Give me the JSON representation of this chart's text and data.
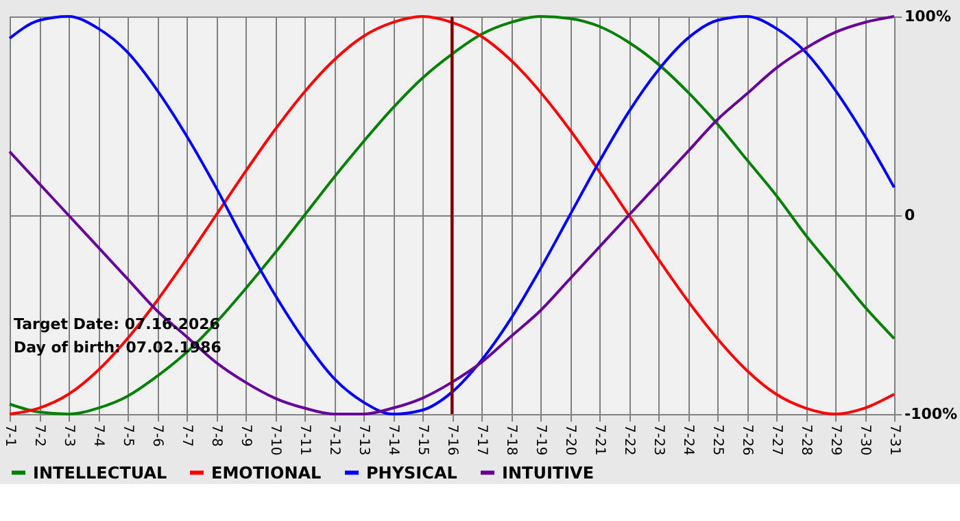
{
  "chart_data": {
    "type": "line",
    "categories": [
      "7-1",
      "7-2",
      "7-3",
      "7-4",
      "7-5",
      "7-6",
      "7-7",
      "7-8",
      "7-9",
      "7-10",
      "7-11",
      "7-12",
      "7-13",
      "7-14",
      "7-15",
      "7-16",
      "7-17",
      "7-18",
      "7-19",
      "7-20",
      "7-21",
      "7-22",
      "7-23",
      "7-24",
      "7-25",
      "7-26",
      "7-27",
      "7-28",
      "7-29",
      "7-30",
      "7-31"
    ],
    "series": [
      {
        "name": "INTELLECTUAL",
        "color": "#008000",
        "values": [
          -95,
          -99,
          -100,
          -97,
          -91,
          -81,
          -69,
          -54,
          -37,
          -19,
          0,
          19,
          37,
          54,
          69,
          81,
          91,
          97,
          100,
          99,
          95,
          87,
          76,
          62,
          46,
          28,
          10,
          -10,
          -28,
          -46,
          -62
        ]
      },
      {
        "name": "EMOTIONAL",
        "color": "#ff0000",
        "values": [
          -100,
          -97,
          -90,
          -78,
          -62,
          -43,
          -22,
          0,
          22,
          43,
          62,
          78,
          90,
          97,
          100,
          97,
          90,
          78,
          62,
          43,
          22,
          0,
          -22,
          -43,
          -62,
          -78,
          -90,
          -97,
          -100,
          -97,
          -90
        ]
      },
      {
        "name": "PHYSICAL",
        "color": "#0000ff",
        "values": [
          89,
          98,
          100,
          94,
          82,
          63,
          40,
          14,
          -14,
          -40,
          -63,
          -82,
          -94,
          -100,
          -98,
          -89,
          -73,
          -52,
          -27,
          0,
          27,
          52,
          73,
          89,
          98,
          100,
          94,
          82,
          63,
          40,
          14
        ]
      },
      {
        "name": "INTUITIVE",
        "color": "#660099",
        "values": [
          32,
          16,
          0,
          -16,
          -32,
          -48,
          -61,
          -74,
          -84,
          -92,
          -97,
          -100,
          -100,
          -97,
          -92,
          -84,
          -74,
          -61,
          -48,
          -32,
          -16,
          0,
          16,
          32,
          48,
          61,
          74,
          84,
          92,
          97,
          100
        ]
      }
    ],
    "ylim": [
      -100,
      100
    ],
    "yticks": [
      {
        "value": 100,
        "label": "100%"
      },
      0,
      {
        "value": -100,
        "label": "-100%"
      }
    ],
    "ref_lines": [
      {
        "axis": "x",
        "value": "7-16",
        "color": "#800000"
      }
    ],
    "annotations": [
      "Target Date: 07.16.2026",
      "Day of birth: 07.02.1986"
    ],
    "grid": true,
    "legend": "bottom left",
    "marker": "none",
    "line_style": "solid"
  }
}
